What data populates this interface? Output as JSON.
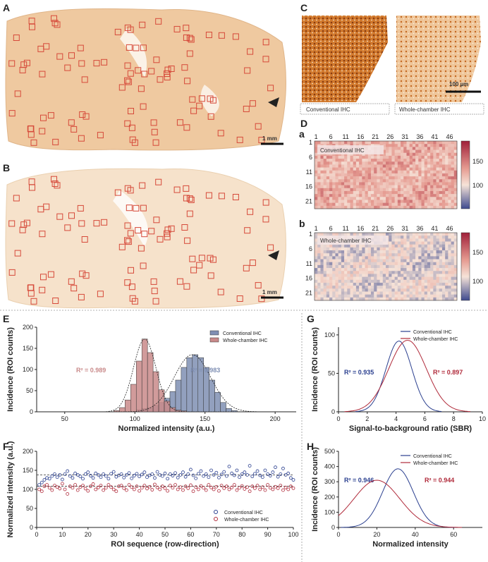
{
  "panel_labels": {
    "A": "A",
    "B": "B",
    "C": "C",
    "D": "D",
    "E": "E",
    "F": "F",
    "G": "G",
    "H": "H"
  },
  "scale_bars": {
    "a": "1 mm",
    "b": "1 mm",
    "c": "100 µm"
  },
  "panel_c": {
    "left_caption": "Conventional IHC",
    "right_caption": "Whole-chamber IHC"
  },
  "panel_d": {
    "sub_a": "a",
    "sub_b": "b",
    "label_a": "Conventional IHC",
    "label_b": "Whole-chamber IHC",
    "col_ticks": [
      "1",
      "6",
      "11",
      "16",
      "21",
      "26",
      "31",
      "36",
      "41",
      "46"
    ],
    "row_ticks": [
      "1",
      "6",
      "11",
      "16",
      "21"
    ],
    "colorbar_ticks": [
      "150",
      "100"
    ]
  },
  "colors": {
    "conventional": "#7f8fb3",
    "whole": "#c98a8a",
    "blue_line": "#2a3f8f",
    "red_line": "#b02a3a",
    "roi_box": "#d64a3a",
    "tissue": "#f0cfaa"
  },
  "chart_data": [
    {
      "id": "E",
      "type": "bar",
      "xlabel": "Normalized intensity (a.u.)",
      "ylabel": "Incidence (ROI counts)",
      "xlim": [
        30,
        215
      ],
      "ylim": [
        0,
        200
      ],
      "xticks": [
        50,
        100,
        150,
        200
      ],
      "yticks": [
        0,
        50,
        100,
        150,
        200
      ],
      "bin_width": 4,
      "series": [
        {
          "name": "Conventional IHC",
          "r2": "R² = 0.983",
          "x": [
            103,
            107,
            111,
            115,
            119,
            123,
            127,
            131,
            135,
            139,
            143,
            147,
            151,
            155,
            159,
            163,
            167,
            171
          ],
          "values": [
            5,
            8,
            10,
            15,
            22,
            32,
            48,
            75,
            105,
            128,
            135,
            128,
            105,
            75,
            46,
            22,
            8,
            3
          ]
        },
        {
          "name": "Whole-chamber IHC",
          "r2": "R² = 0.989",
          "x": [
            87,
            91,
            95,
            99,
            103,
            107,
            111,
            115,
            119,
            123,
            127,
            131,
            135
          ],
          "values": [
            3,
            10,
            28,
            65,
            120,
            172,
            140,
            95,
            52,
            25,
            10,
            4,
            2
          ]
        }
      ]
    },
    {
      "id": "F",
      "type": "scatter",
      "xlabel": "ROI sequence (row-direction)",
      "ylabel": "Normalized intensity (a.u.)",
      "xlim": [
        0,
        100
      ],
      "ylim": [
        0,
        200
      ],
      "xticks": [
        0,
        10,
        20,
        30,
        40,
        50,
        60,
        70,
        80,
        90,
        100
      ],
      "yticks": [
        0,
        50,
        100,
        150,
        200
      ],
      "means": [
        138,
        108
      ],
      "series": [
        {
          "name": "Conventional IHC",
          "y": [
            112,
            118,
            125,
            130,
            128,
            135,
            140,
            132,
            138,
            126,
            140,
            148,
            135,
            130,
            142,
            138,
            134,
            128,
            140,
            145,
            136,
            130,
            142,
            138,
            132,
            140,
            135,
            128,
            141,
            146,
            133,
            137,
            140,
            131,
            138,
            143,
            129,
            136,
            141,
            134,
            139,
            145,
            132,
            137,
            140,
            130,
            146,
            138,
            135,
            142,
            128,
            140,
            136,
            143,
            131,
            138,
            145,
            133,
            140,
            152,
            137,
            129,
            141,
            148,
            135,
            140,
            132,
            150,
            138,
            144,
            131,
            139,
            146,
            135,
            160,
            142,
            137,
            150,
            132,
            140,
            145,
            138,
            162,
            134,
            141,
            148,
            137,
            132,
            150,
            140,
            136,
            145,
            158,
            133,
            140,
            155,
            138,
            142,
            130,
            125
          ]
        },
        {
          "name": "Whole-chamber IHC",
          "y": [
            100,
            95,
            108,
            112,
            104,
            98,
            110,
            106,
            102,
            115,
            100,
            88,
            108,
            104,
            112,
            98,
            106,
            110,
            102,
            96,
            108,
            114,
            100,
            105,
            110,
            98,
            104,
            112,
            106,
            100,
            95,
            108,
            110,
            103,
            98,
            112,
            106,
            100,
            108,
            96,
            104,
            110,
            102,
            107,
            99,
            113,
            105,
            100,
            108,
            103,
            96,
            110,
            104,
            112,
            100,
            106,
            98,
            108,
            103,
            111,
            95,
            106,
            100,
            109,
            104,
            98,
            112,
            105,
            100,
            107,
            96,
            110,
            103,
            108,
            100,
            105,
            112,
            98,
            104,
            109,
            101,
            106,
            95,
            108,
            103,
            110,
            100,
            106,
            98,
            112,
            104,
            100,
            107,
            103,
            110,
            98,
            105,
            100,
            108,
            103
          ]
        }
      ]
    },
    {
      "id": "G",
      "type": "line",
      "xlabel": "Signal-to-background ratio (SBR)",
      "ylabel": "Incidence (ROI counts)",
      "xlim": [
        0,
        10
      ],
      "ylim": [
        0,
        110
      ],
      "xticks": [
        0,
        2,
        4,
        6,
        8,
        10
      ],
      "yticks": [
        0,
        50,
        100
      ],
      "series": [
        {
          "name": "Conventional IHC",
          "r2": "R² = 0.935",
          "amp": 92,
          "mean": 4.2,
          "sd": 0.9
        },
        {
          "name": "Whole-chamber IHC",
          "r2": "R² = 0.897",
          "amp": 93,
          "mean": 4.8,
          "sd": 1.3
        }
      ]
    },
    {
      "id": "H",
      "type": "line",
      "xlabel": "Normalized intensity",
      "ylabel": "Incidence (ROI counts)",
      "xlim": [
        0,
        75
      ],
      "ylim": [
        0,
        500
      ],
      "xticks": [
        0,
        20,
        40,
        60
      ],
      "yticks": [
        0,
        100,
        200,
        300,
        400,
        500
      ],
      "series": [
        {
          "name": "Conventional IHC",
          "r2": "R² = 0.946",
          "amp": 385,
          "mean": 31,
          "sd": 8
        },
        {
          "name": "Whole-chamber IHC",
          "r2": "R² = 0.944",
          "amp": 310,
          "mean": 20,
          "sd": 12
        }
      ]
    }
  ]
}
